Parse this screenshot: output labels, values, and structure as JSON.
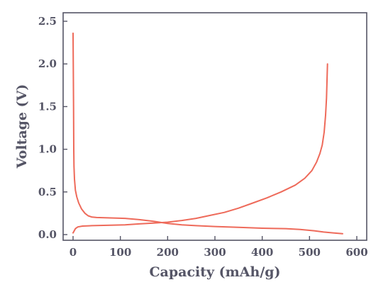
{
  "chart_data": {
    "type": "line",
    "title": "",
    "xlabel": "Capacity (mAh/g)",
    "ylabel": "Voltage (V)",
    "xlim": [
      0,
      600
    ],
    "ylim": [
      0,
      2.5
    ],
    "xticks": [
      0,
      100,
      200,
      300,
      400,
      500,
      600
    ],
    "yticks": [
      0.0,
      0.5,
      1.0,
      1.5,
      2.0,
      2.5
    ],
    "xtick_labels": [
      "0",
      "100",
      "200",
      "300",
      "400",
      "500",
      "600"
    ],
    "ytick_labels": [
      "0.0",
      "0.5",
      "1.0",
      "1.5",
      "2.0",
      "2.5"
    ],
    "grid": false,
    "line_color": "#ee6a5a",
    "series": [
      {
        "points": [
          [
            0,
            2.36
          ],
          [
            0.5,
            2.0
          ],
          [
            1,
            1.5
          ],
          [
            1.5,
            1.0
          ],
          [
            2,
            0.8
          ],
          [
            3,
            0.65
          ],
          [
            5,
            0.52
          ],
          [
            8,
            0.44
          ],
          [
            12,
            0.37
          ],
          [
            18,
            0.3
          ],
          [
            25,
            0.25
          ],
          [
            32,
            0.22
          ],
          [
            40,
            0.205
          ],
          [
            50,
            0.2
          ],
          [
            80,
            0.195
          ],
          [
            110,
            0.19
          ],
          [
            140,
            0.175
          ],
          [
            170,
            0.155
          ],
          [
            200,
            0.13
          ],
          [
            230,
            0.115
          ],
          [
            260,
            0.105
          ],
          [
            300,
            0.095
          ],
          [
            350,
            0.085
          ],
          [
            400,
            0.075
          ],
          [
            450,
            0.07
          ],
          [
            480,
            0.06
          ],
          [
            510,
            0.045
          ],
          [
            530,
            0.03
          ],
          [
            550,
            0.02
          ],
          [
            570,
            0.01
          ]
        ]
      },
      {
        "points": [
          [
            0,
            0.02
          ],
          [
            5,
            0.07
          ],
          [
            10,
            0.09
          ],
          [
            20,
            0.1
          ],
          [
            40,
            0.105
          ],
          [
            80,
            0.11
          ],
          [
            110,
            0.115
          ],
          [
            140,
            0.125
          ],
          [
            170,
            0.135
          ],
          [
            200,
            0.145
          ],
          [
            230,
            0.165
          ],
          [
            260,
            0.19
          ],
          [
            290,
            0.225
          ],
          [
            320,
            0.26
          ],
          [
            350,
            0.31
          ],
          [
            380,
            0.37
          ],
          [
            410,
            0.43
          ],
          [
            440,
            0.5
          ],
          [
            470,
            0.58
          ],
          [
            490,
            0.66
          ],
          [
            505,
            0.75
          ],
          [
            515,
            0.85
          ],
          [
            522,
            0.95
          ],
          [
            527,
            1.05
          ],
          [
            531,
            1.2
          ],
          [
            534,
            1.4
          ],
          [
            536,
            1.6
          ],
          [
            537,
            1.8
          ],
          [
            538,
            2.0
          ]
        ]
      }
    ]
  }
}
